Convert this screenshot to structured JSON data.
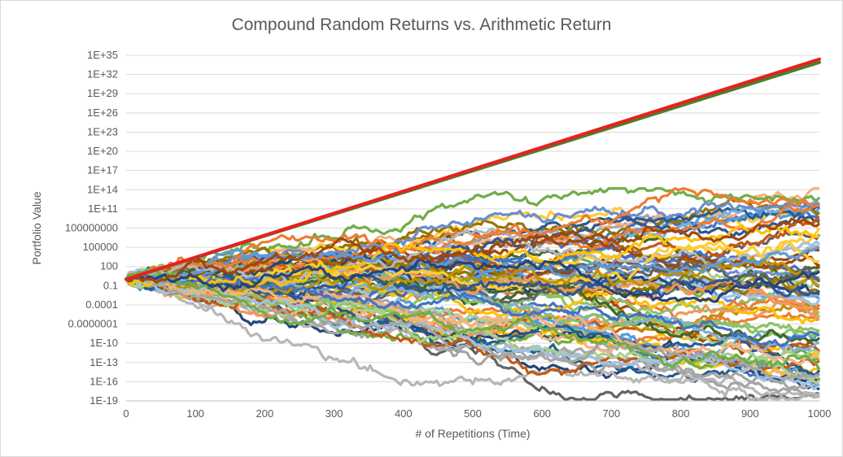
{
  "chart_data": {
    "type": "line",
    "title": "Compound Random Returns vs. Arithmetic Return",
    "xlabel": "# of Repetitions (Time)",
    "ylabel": "Portfolio Value",
    "y_scale": "log",
    "xlim": [
      0,
      1000
    ],
    "ylim": [
      "1E-19",
      "1E+35"
    ],
    "x_ticks": [
      "0",
      "100",
      "200",
      "300",
      "400",
      "500",
      "600",
      "700",
      "800",
      "900",
      "1000"
    ],
    "y_ticks": [
      "1E+35",
      "1E+32",
      "1E+29",
      "1E+26",
      "1E+23",
      "1E+20",
      "1E+17",
      "1E+14",
      "1E+11",
      "100000000",
      "100000",
      "100",
      "0.1",
      "0.0001",
      "0.0000001",
      "1E-10",
      "1E-13",
      "1E-16",
      "1E-19"
    ],
    "grid": "horizontal",
    "legend": "none",
    "reference_lines": [
      {
        "color": "#e8211f",
        "x": [
          0,
          1000
        ],
        "log10_y": [
          0,
          34.4
        ]
      },
      {
        "color": "#4a7f2c",
        "x": [
          0,
          1000
        ],
        "log10_y": [
          0,
          33.9
        ]
      }
    ],
    "random_paths": {
      "count": 80,
      "start_log10_y": 0,
      "x_range": [
        0,
        1000
      ],
      "log10_y_spread_at_end": [
        -17,
        13
      ],
      "colors": [
        "#4472c4",
        "#ed7d31",
        "#a5a5a5",
        "#ffc000",
        "#5b9bd5",
        "#70ad47",
        "#264478",
        "#9e480e",
        "#636363",
        "#997300",
        "#255e91",
        "#43682b",
        "#698ed0",
        "#f1975a",
        "#b7b7b7",
        "#ffcd33",
        "#7cafdd",
        "#8cc168",
        "#2f5597",
        "#c55a11",
        "#a9d18e",
        "#bf9000",
        "#9dc3e6",
        "#f4b183"
      ]
    }
  }
}
